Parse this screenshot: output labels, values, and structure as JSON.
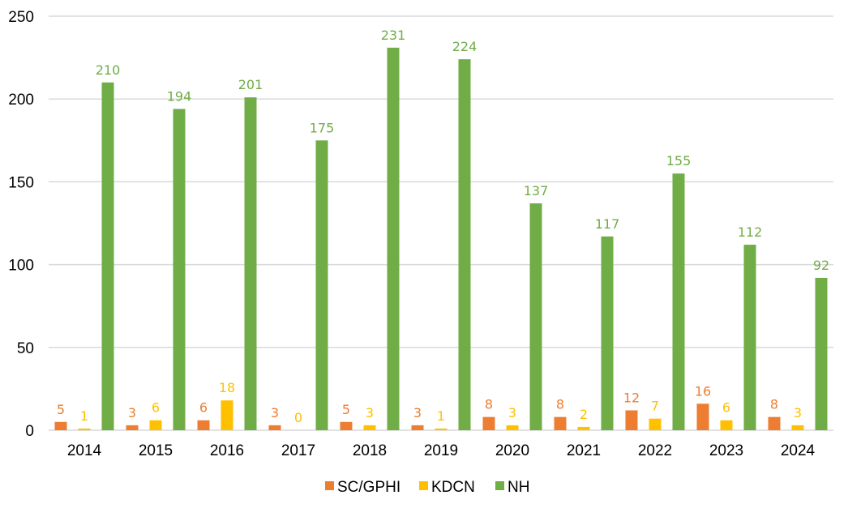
{
  "chart_data": {
    "type": "bar",
    "title": "",
    "xlabel": "",
    "ylabel": "",
    "ylim": [
      0,
      250
    ],
    "yticks": [
      0,
      50,
      100,
      150,
      200,
      250
    ],
    "grid": true,
    "legend_position": "bottom",
    "categories": [
      "2014",
      "2015",
      "2016",
      "2017",
      "2018",
      "2019",
      "2020",
      "2021",
      "2022",
      "2023",
      "2024"
    ],
    "series": [
      {
        "name": "SC/GPHI",
        "color": "#ED7D31",
        "values": [
          5,
          3,
          6,
          3,
          5,
          3,
          8,
          8,
          12,
          16,
          8
        ]
      },
      {
        "name": "KDCN",
        "color": "#FFC000",
        "values": [
          1,
          6,
          18,
          0,
          3,
          1,
          3,
          2,
          7,
          6,
          3
        ]
      },
      {
        "name": "NH",
        "color": "#70AD47",
        "values": [
          210,
          194,
          201,
          175,
          231,
          224,
          137,
          117,
          155,
          112,
          92
        ]
      }
    ],
    "data_labels": true
  }
}
